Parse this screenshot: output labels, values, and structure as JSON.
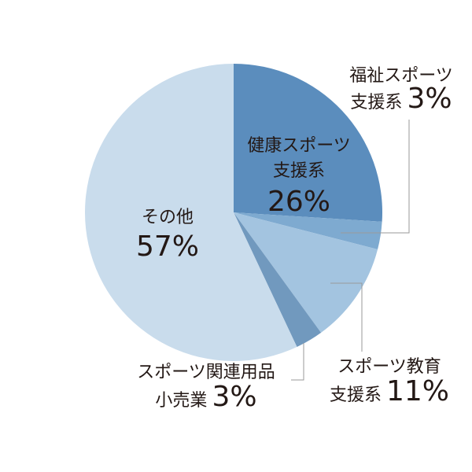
{
  "chart_data": {
    "type": "pie",
    "slices": [
      {
        "label": "健康スポーツ支援系",
        "name_lines": [
          "健康スポーツ",
          "支援系"
        ],
        "value": 26,
        "pct_text": "26%",
        "color": "#5b8dbd"
      },
      {
        "label": "福祉スポーツ支援系",
        "name_lines": [
          "福祉スポーツ",
          "支援系"
        ],
        "value": 3,
        "pct_text": "3%",
        "color": "#7eaad0"
      },
      {
        "label": "スポーツ教育支援系",
        "name_lines": [
          "スポーツ教育",
          "支援系"
        ],
        "value": 11,
        "pct_text": "11%",
        "color": "#a3c4e0"
      },
      {
        "label": "スポーツ関連用品小売業",
        "name_lines": [
          "スポーツ関連用品",
          "小売業"
        ],
        "value": 3,
        "pct_text": "3%",
        "color": "#7199be"
      },
      {
        "label": "その他",
        "name_lines": [
          "その他"
        ],
        "value": 57,
        "pct_text": "57%",
        "color": "#c9dcec"
      }
    ],
    "start": "12 o'clock",
    "direction": "clockwise",
    "leader_line_color": "#9a9a9a"
  }
}
